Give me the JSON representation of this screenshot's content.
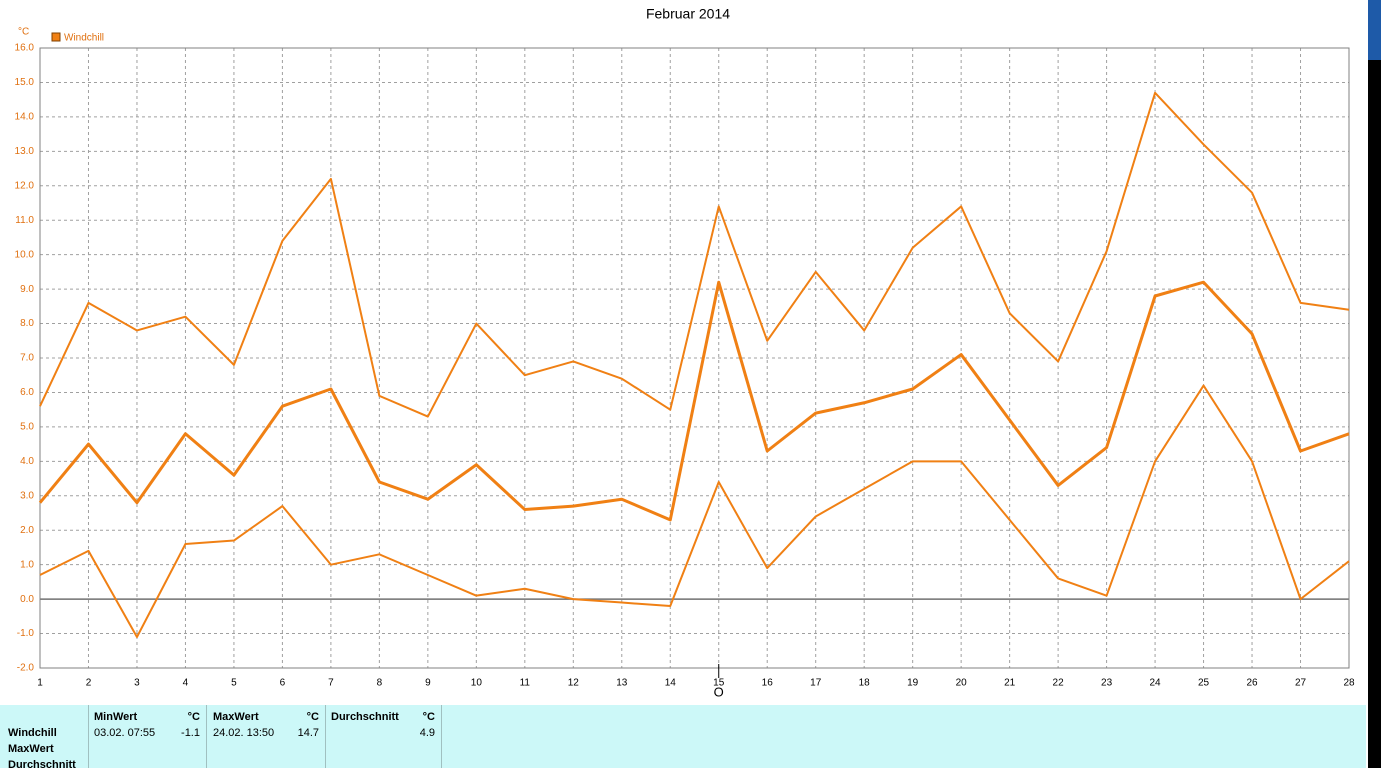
{
  "chart_data": {
    "type": "line",
    "title": "Februar 2014",
    "y_unit": "°C",
    "legend": {
      "label": "Windchill",
      "color": "#f08014"
    },
    "x": [
      1,
      2,
      3,
      4,
      5,
      6,
      7,
      8,
      9,
      10,
      11,
      12,
      13,
      14,
      15,
      16,
      17,
      18,
      19,
      20,
      21,
      22,
      23,
      24,
      25,
      26,
      27,
      28
    ],
    "xlim": [
      1,
      28
    ],
    "xticks": [
      1,
      2,
      3,
      4,
      5,
      6,
      7,
      8,
      9,
      10,
      11,
      12,
      13,
      14,
      15,
      16,
      17,
      18,
      19,
      20,
      21,
      22,
      23,
      24,
      25,
      26,
      27,
      28
    ],
    "ylim": [
      -2,
      16
    ],
    "yticks": [
      {
        "value": -2,
        "label": "-2.0"
      },
      {
        "value": -1,
        "label": "-1.0"
      },
      {
        "value": 0,
        "label": "0.0"
      },
      {
        "value": 1,
        "label": "1.0"
      },
      {
        "value": 2,
        "label": "2.0"
      },
      {
        "value": 3,
        "label": "3.0"
      },
      {
        "value": 4,
        "label": "4.0"
      },
      {
        "value": 5,
        "label": "5.0"
      },
      {
        "value": 6,
        "label": "6.0"
      },
      {
        "value": 7,
        "label": "7.0"
      },
      {
        "value": 8,
        "label": "8.0"
      },
      {
        "value": 9,
        "label": "9.0"
      },
      {
        "value": 10,
        "label": "10.0"
      },
      {
        "value": 11,
        "label": "11.0"
      },
      {
        "value": 12,
        "label": "12.0"
      },
      {
        "value": 13,
        "label": "13.0"
      },
      {
        "value": 14,
        "label": "14.0"
      },
      {
        "value": 15,
        "label": "15.0"
      },
      {
        "value": 16,
        "label": "16.0"
      }
    ],
    "grid": true,
    "series": [
      {
        "color": "#f08014",
        "width": 2,
        "values": [
          5.6,
          8.6,
          7.8,
          8.2,
          6.8,
          10.4,
          12.2,
          5.9,
          5.3,
          8.0,
          6.5,
          6.9,
          6.4,
          5.5,
          11.4,
          7.5,
          9.5,
          7.8,
          10.2,
          11.4,
          8.3,
          6.9,
          10.1,
          14.7,
          13.2,
          11.8,
          8.6,
          8.4
        ]
      },
      {
        "color": "#f08014",
        "width": 3,
        "values": [
          2.8,
          4.5,
          2.8,
          4.8,
          3.6,
          5.6,
          6.1,
          3.4,
          2.9,
          3.9,
          2.6,
          2.7,
          2.9,
          2.3,
          9.2,
          4.3,
          5.4,
          5.7,
          6.1,
          7.1,
          5.2,
          3.3,
          4.4,
          8.8,
          9.2,
          7.7,
          4.3,
          4.8
        ]
      },
      {
        "color": "#f08014",
        "width": 2,
        "values": [
          0.7,
          1.4,
          -1.1,
          1.6,
          1.7,
          2.7,
          1.0,
          1.3,
          0.7,
          0.1,
          0.3,
          0.0,
          -0.1,
          -0.2,
          3.4,
          0.9,
          2.4,
          3.2,
          4.0,
          4.0,
          2.3,
          0.6,
          0.1,
          4.0,
          6.2,
          4.0,
          0.0,
          1.1
        ]
      }
    ],
    "cursor": {
      "x": 15,
      "label": "O"
    }
  },
  "stats_table": {
    "row_labels": [
      "Windchill",
      "MaxWert",
      "Durchschnitt"
    ],
    "columns": [
      {
        "header": "MinWert",
        "unit": "°C",
        "date": "03.02.  07:55",
        "value": -1.1
      },
      {
        "header": "MaxWert",
        "unit": "°C",
        "date": "24.02.  13:50",
        "value": 14.7
      },
      {
        "header": "Durchschnitt",
        "unit": "°C",
        "value": 4.9
      }
    ]
  }
}
